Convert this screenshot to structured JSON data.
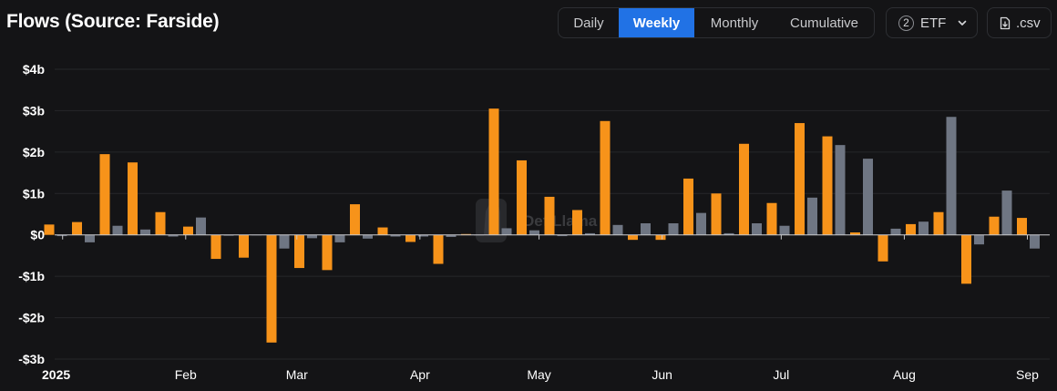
{
  "header": {
    "title": "Flows (Source: Farside)",
    "tabs": [
      {
        "label": "Daily",
        "active": false
      },
      {
        "label": "Weekly",
        "active": true
      },
      {
        "label": "Monthly",
        "active": false
      },
      {
        "label": "Cumulative",
        "active": false
      }
    ],
    "etf_filter": {
      "count": "2",
      "label": "ETF",
      "icon": "chevron-down-icon"
    },
    "csv_button": {
      "label": ".csv",
      "icon": "file-download-icon"
    }
  },
  "watermark": {
    "text": "DefiLlama",
    "icon": "llama-icon"
  },
  "colors": {
    "background": "#141416",
    "series_1": "#f7931a",
    "series_2": "#6f7683",
    "active_tab": "#2172e5",
    "gridline": "#26272a"
  },
  "chart_data": {
    "type": "bar",
    "y_unit": "USD",
    "ylim": [
      -3,
      4
    ],
    "yticks": [
      {
        "value": 4,
        "label": "$4b"
      },
      {
        "value": 3,
        "label": "$3b"
      },
      {
        "value": 2,
        "label": "$2b"
      },
      {
        "value": 1,
        "label": "$1b"
      },
      {
        "value": 0,
        "label": "$0"
      },
      {
        "value": -1,
        "label": "-$1b"
      },
      {
        "value": -2,
        "label": "-$2b"
      },
      {
        "value": -3,
        "label": "-$3b"
      }
    ],
    "x_start": "2024-12-30",
    "xticks": [
      {
        "date": "2025-01-01",
        "label": "2025"
      },
      {
        "date": "2025-02-01",
        "label": "Feb"
      },
      {
        "date": "2025-03-01",
        "label": "Mar"
      },
      {
        "date": "2025-04-01",
        "label": "Apr"
      },
      {
        "date": "2025-05-01",
        "label": "May"
      },
      {
        "date": "2025-06-01",
        "label": "Jun"
      },
      {
        "date": "2025-07-01",
        "label": "Jul"
      },
      {
        "date": "2025-08-01",
        "label": "Aug"
      },
      {
        "date": "2025-09-01",
        "label": "Sep"
      }
    ],
    "x": [
      "2024-12-30",
      "2025-01-06",
      "2025-01-13",
      "2025-01-20",
      "2025-01-27",
      "2025-02-03",
      "2025-02-10",
      "2025-02-17",
      "2025-02-24",
      "2025-03-03",
      "2025-03-10",
      "2025-03-17",
      "2025-03-24",
      "2025-03-31",
      "2025-04-07",
      "2025-04-14",
      "2025-04-21",
      "2025-04-28",
      "2025-05-05",
      "2025-05-12",
      "2025-05-19",
      "2025-05-26",
      "2025-06-02",
      "2025-06-09",
      "2025-06-16",
      "2025-06-23",
      "2025-06-30",
      "2025-07-07",
      "2025-07-14",
      "2025-07-21",
      "2025-07-28",
      "2025-08-04",
      "2025-08-11",
      "2025-08-18",
      "2025-08-25",
      "2025-09-01"
    ],
    "series": [
      {
        "values": [
          0.25,
          0.31,
          1.95,
          1.75,
          0.55,
          0.2,
          -0.58,
          -0.55,
          -2.6,
          -0.8,
          -0.85,
          0.74,
          0.18,
          -0.17,
          -0.7,
          0.02,
          3.05,
          1.8,
          0.92,
          0.6,
          2.75,
          -0.12,
          -0.12,
          1.36,
          1.0,
          2.2,
          0.77,
          2.7,
          2.38,
          0.06,
          -0.64,
          0.26,
          0.55,
          -1.18,
          0.44,
          0.41
        ],
        "color": "#f7931a"
      },
      {
        "values": [
          -0.03,
          -0.18,
          0.22,
          0.13,
          -0.04,
          0.42,
          -0.02,
          0.0,
          -0.33,
          -0.08,
          -0.18,
          -0.09,
          -0.04,
          -0.04,
          -0.05,
          0.0,
          0.16,
          0.11,
          -0.03,
          0.04,
          0.24,
          0.28,
          0.28,
          0.53,
          0.04,
          0.28,
          0.22,
          0.9,
          2.17,
          1.84,
          0.15,
          0.32,
          2.85,
          -0.23,
          1.07,
          -0.33
        ],
        "color": "#6f7683"
      }
    ],
    "grid": true,
    "legend": "none"
  }
}
